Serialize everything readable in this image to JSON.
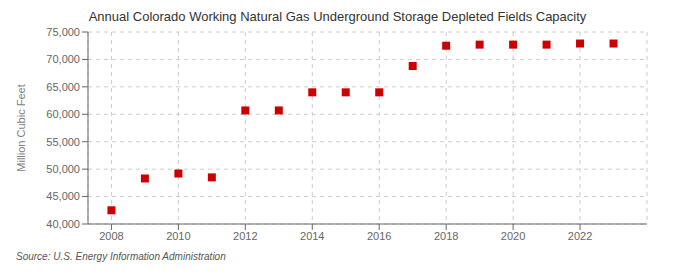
{
  "chart_data": {
    "type": "scatter",
    "title": "Annual Colorado Working Natural Gas Underground Storage Depleted Fields Capacity",
    "ylabel": "Million Cubic Feet",
    "annotation": "Source: U.S. Energy Information Administration",
    "x": [
      2008,
      2009,
      2010,
      2011,
      2012,
      2013,
      2014,
      2015,
      2016,
      2017,
      2018,
      2019,
      2020,
      2021,
      2022,
      2023
    ],
    "values": [
      42500,
      48300,
      49200,
      48500,
      60700,
      60700,
      64000,
      64000,
      64000,
      68800,
      72500,
      72700,
      72700,
      72700,
      72900,
      72900
    ],
    "color": "#cc0000",
    "marker": "square",
    "xlim": [
      2007.3,
      2024.0
    ],
    "xticks": [
      2008,
      2010,
      2012,
      2014,
      2016,
      2018,
      2020,
      2022
    ],
    "ylim": [
      40000,
      75000
    ],
    "yticks": [
      {
        "value": 40000,
        "label": "40,000"
      },
      {
        "value": 45000,
        "label": "45,000"
      },
      {
        "value": 50000,
        "label": "50,000"
      },
      {
        "value": 55000,
        "label": "55,000"
      },
      {
        "value": 60000,
        "label": "60,000"
      },
      {
        "value": 65000,
        "label": "65,000"
      },
      {
        "value": 70000,
        "label": "70,000"
      },
      {
        "value": 75000,
        "label": "75,000"
      }
    ],
    "grid": true
  }
}
